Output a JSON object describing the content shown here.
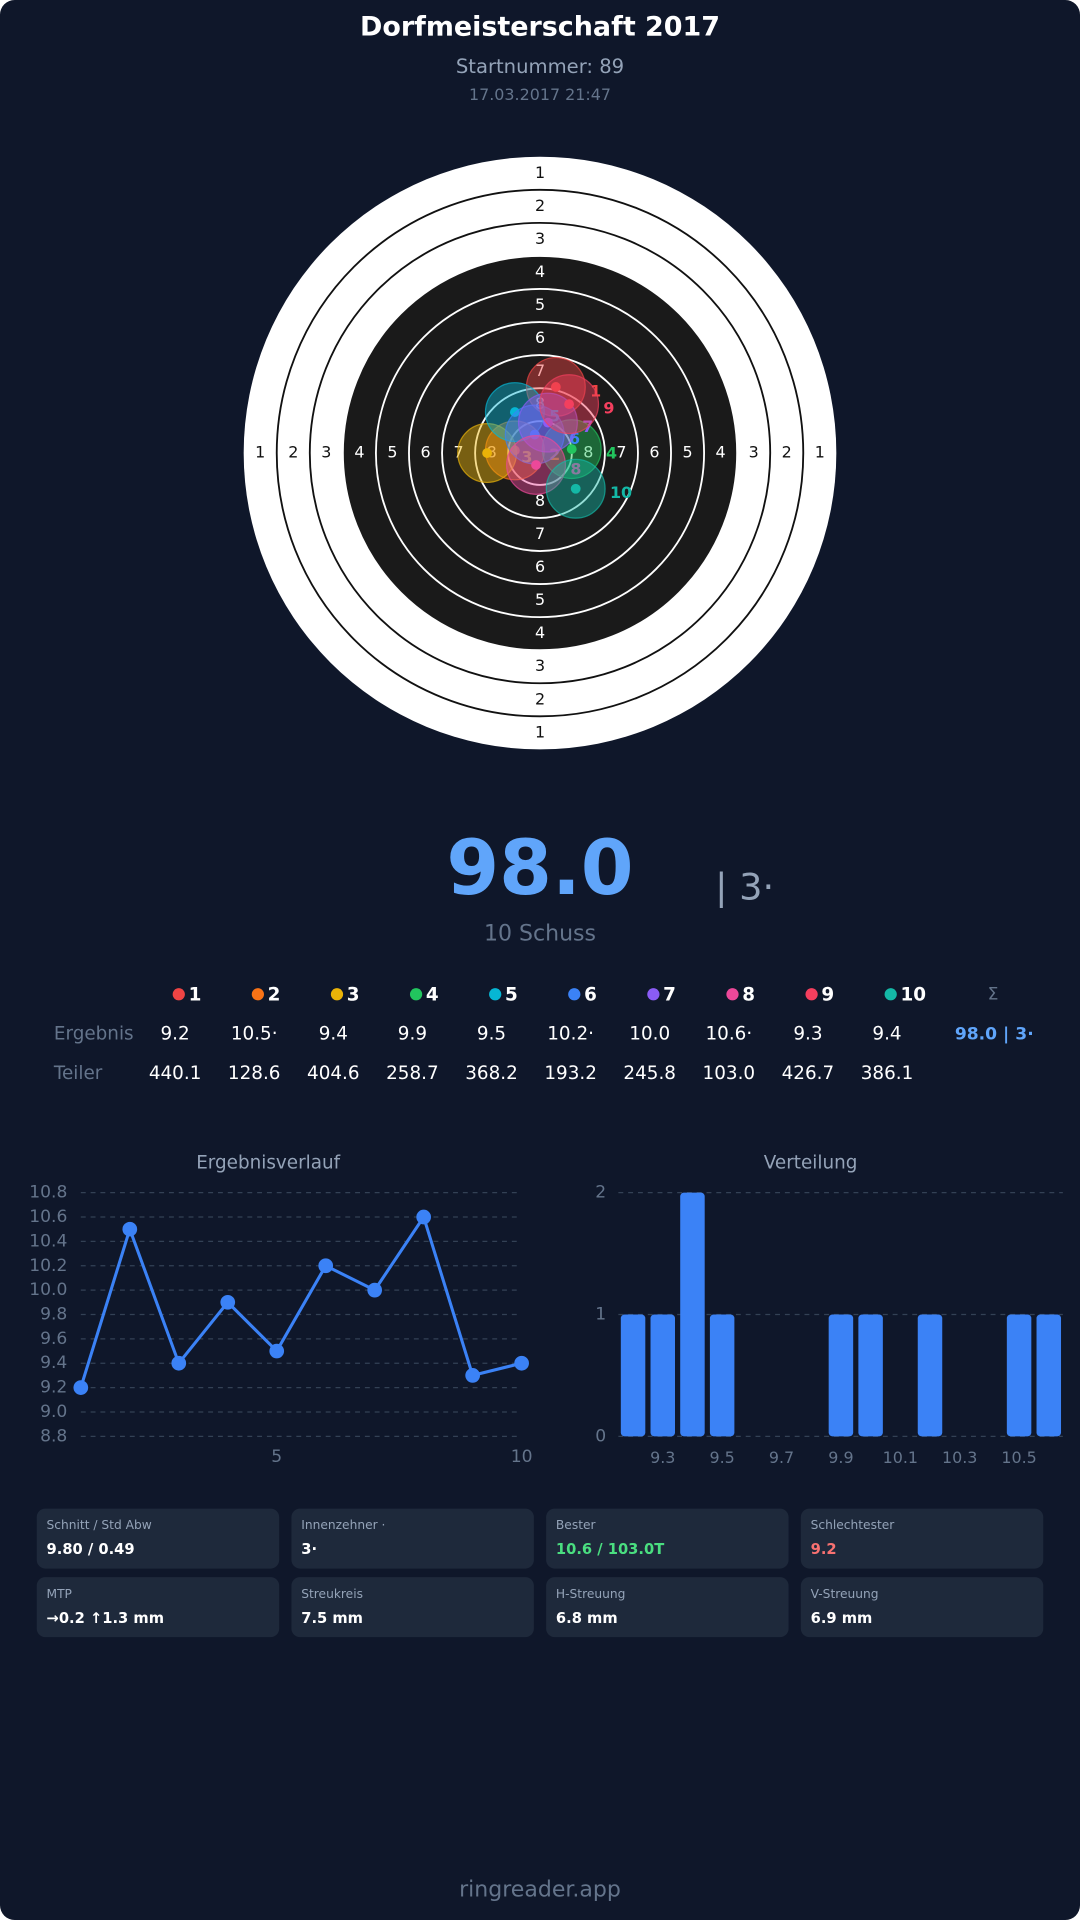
{
  "header": {
    "title": "Dorfmeisterschaft 2017",
    "start": "Startnummer: 89",
    "date": "17.03.2017 21:47"
  },
  "target": {
    "ring_labels": [
      1,
      2,
      3,
      4,
      5,
      6,
      7,
      8
    ],
    "shots": [
      {
        "label": "1",
        "color": "#ef4444",
        "x": 1.2,
        "y": 5.0
      },
      {
        "label": "2",
        "color": "#f97316",
        "x": -1.9,
        "y": 0.2
      },
      {
        "label": "3",
        "color": "#eab308",
        "x": -4.0,
        "y": 0.0
      },
      {
        "label": "4",
        "color": "#22c55e",
        "x": 2.4,
        "y": 0.3
      },
      {
        "label": "5",
        "color": "#06b6d4",
        "x": -1.9,
        "y": 3.1
      },
      {
        "label": "6",
        "color": "#3b82f6",
        "x": -0.4,
        "y": 1.4
      },
      {
        "label": "7",
        "color": "#8b5cf6",
        "x": 0.6,
        "y": 2.3
      },
      {
        "label": "8",
        "color": "#ec4899",
        "x": -0.3,
        "y": -0.9
      },
      {
        "label": "9",
        "color": "#f43f5e",
        "x": 2.2,
        "y": 3.7
      },
      {
        "label": "10",
        "color": "#14b8a6",
        "x": 2.7,
        "y": -2.7
      }
    ]
  },
  "score": {
    "total": "98.0",
    "inner": "| 3·",
    "shots": "10 Schuss"
  },
  "table": {
    "sum_header": "Σ",
    "rows": [
      {
        "label": "Ergebnis",
        "cells": [
          "9.2",
          "10.5·",
          "9.4",
          "9.9",
          "9.5",
          "10.2·",
          "10.0",
          "10.6·",
          "9.3",
          "9.4"
        ],
        "sum": "98.0 | 3·"
      },
      {
        "label": "Teiler",
        "cells": [
          "440.1",
          "128.6",
          "404.6",
          "258.7",
          "368.2",
          "193.2",
          "245.8",
          "103.0",
          "426.7",
          "386.1"
        ]
      }
    ]
  },
  "chart_data": [
    {
      "type": "line",
      "title": "Ergebnisverlauf",
      "color": "#3b82f6",
      "x": [
        1,
        2,
        3,
        4,
        5,
        6,
        7,
        8,
        9,
        10
      ],
      "values": [
        9.2,
        10.5,
        9.4,
        9.9,
        9.5,
        10.2,
        10.0,
        10.6,
        9.3,
        9.4
      ],
      "xlim": [
        1,
        10
      ],
      "xticks": [
        5,
        10
      ],
      "ylim": [
        8.8,
        10.8
      ],
      "yticks": [
        {
          "value": 8.8,
          "label": "8.8"
        },
        {
          "value": 9,
          "label": "9.0"
        },
        {
          "value": 9.2,
          "label": "9.2"
        },
        {
          "value": 9.4,
          "label": "9.4"
        },
        {
          "value": 9.6,
          "label": "9.6"
        },
        {
          "value": 9.8,
          "label": "9.8"
        },
        {
          "value": 10,
          "label": "10.0"
        },
        {
          "value": 10.2,
          "label": "10.2"
        },
        {
          "value": 10.4,
          "label": "10.4"
        },
        {
          "value": 10.6,
          "label": "10.6"
        },
        {
          "value": 10.8,
          "label": "10.8"
        }
      ],
      "grid": true
    },
    {
      "type": "bar",
      "title": "Verteilung",
      "color": "#3b82f6",
      "categories": [
        null,
        "9.3",
        null,
        "9.5",
        null,
        "9.7",
        null,
        "9.9",
        null,
        "10.1",
        null,
        "10.3",
        null,
        "10.5",
        null
      ],
      "values": [
        1,
        1,
        2,
        1,
        0,
        0,
        0,
        1,
        1,
        0,
        1,
        0,
        0,
        1,
        1
      ],
      "ylim": [
        0,
        2
      ],
      "yticks": [
        0,
        1,
        2
      ],
      "grid": true
    }
  ],
  "stats": [
    {
      "label": "Schnitt / Std Abw",
      "value": "9.80 / 0.49",
      "color": "#ffffff"
    },
    {
      "label": "Innenzehner ·",
      "value": "3·",
      "color": "#ffffff"
    },
    {
      "label": "Bester",
      "value": "10.6 / 103.0T",
      "color": "#4ade80"
    },
    {
      "label": "Schlechtester",
      "value": "9.2",
      "color": "#f87171"
    },
    {
      "label": "MTP",
      "value": "→0.2 ↑1.3 mm",
      "color": "#ffffff"
    },
    {
      "label": "Streukreis",
      "value": "7.5 mm",
      "color": "#ffffff"
    },
    {
      "label": "H-Streuung",
      "value": "6.8 mm",
      "color": "#ffffff"
    },
    {
      "label": "V-Streuung",
      "value": "6.9 mm",
      "color": "#ffffff"
    }
  ],
  "footer": "ringreader.app"
}
